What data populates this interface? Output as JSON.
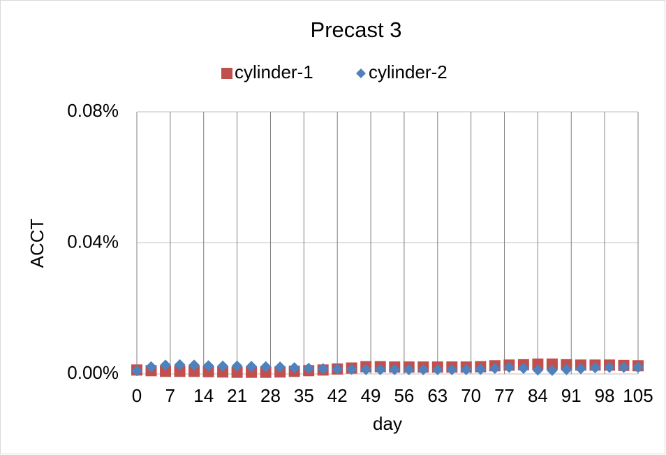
{
  "chart_data": {
    "type": "scatter",
    "title": "Precast 3",
    "xlabel": "day",
    "ylabel": "ACCT",
    "x": [
      0,
      3,
      6,
      9,
      12,
      15,
      18,
      21,
      24,
      27,
      30,
      33,
      36,
      39,
      42,
      45,
      48,
      51,
      54,
      57,
      60,
      63,
      66,
      69,
      72,
      75,
      78,
      81,
      84,
      87,
      90,
      93,
      96,
      99,
      102,
      105
    ],
    "series": [
      {
        "name": "cylinder-1",
        "color": "#c0504d",
        "marker": "square",
        "values": [
          0.0012,
          0.001,
          0.0008,
          0.0008,
          0.0008,
          0.0007,
          0.0006,
          0.0005,
          0.0005,
          0.0005,
          0.0006,
          0.0008,
          0.001,
          0.0012,
          0.0015,
          0.0018,
          0.0022,
          0.0022,
          0.0021,
          0.0021,
          0.0021,
          0.0021,
          0.0021,
          0.0021,
          0.0022,
          0.0025,
          0.0027,
          0.0028,
          0.003,
          0.003,
          0.0028,
          0.0027,
          0.0027,
          0.0027,
          0.0026,
          0.0025
        ]
      },
      {
        "name": "cylinder-2",
        "color": "#4f81bd",
        "marker": "diamond",
        "values": [
          0.001,
          0.0022,
          0.0027,
          0.0028,
          0.0027,
          0.0025,
          0.0024,
          0.0024,
          0.0023,
          0.0022,
          0.0021,
          0.0019,
          0.0017,
          0.0016,
          0.0015,
          0.0014,
          0.0013,
          0.0013,
          0.0013,
          0.0013,
          0.0013,
          0.0013,
          0.0013,
          0.0013,
          0.0014,
          0.0017,
          0.002,
          0.0017,
          0.0012,
          0.0011,
          0.0013,
          0.0016,
          0.0019,
          0.002,
          0.002,
          0.002
        ]
      }
    ],
    "xlim": [
      0,
      105
    ],
    "xticks": [
      0,
      7,
      14,
      21,
      28,
      35,
      42,
      49,
      56,
      63,
      70,
      77,
      84,
      91,
      98,
      105
    ],
    "ylim": [
      0,
      0.08
    ],
    "yticks": [
      {
        "value": 0,
        "label": "0.00%"
      },
      {
        "value": 0.04,
        "label": "0.04%"
      },
      {
        "value": 0.08,
        "label": "0.08%"
      }
    ],
    "grid": true,
    "legend": "top"
  }
}
